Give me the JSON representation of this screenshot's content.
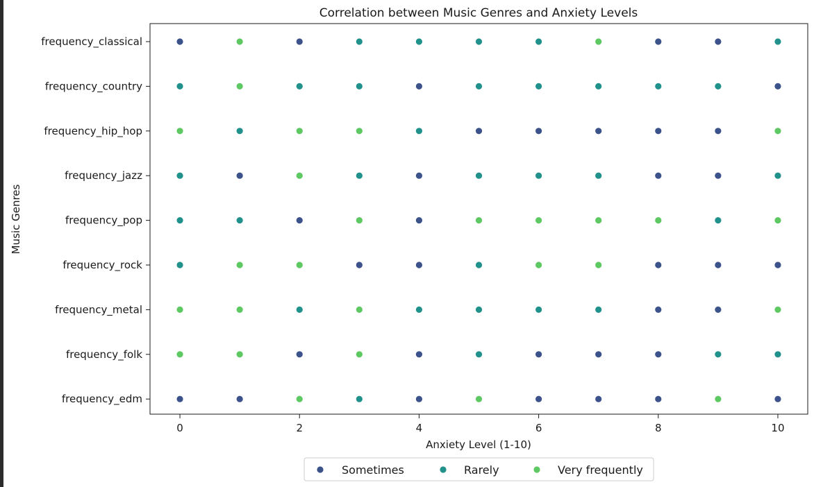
{
  "chart_data": {
    "type": "scatter",
    "title": "Correlation between Music Genres and Anxiety Levels",
    "xlabel": "Anxiety Level (1-10)",
    "ylabel": "Music Genres",
    "xlim": [
      -0.5,
      10.5
    ],
    "xticks": [
      0,
      2,
      4,
      6,
      8,
      10
    ],
    "categories": [
      "frequency_classical",
      "frequency_country",
      "frequency_hip_hop",
      "frequency_jazz",
      "frequency_pop",
      "frequency_rock",
      "frequency_metal",
      "frequency_folk",
      "frequency_edm"
    ],
    "x": [
      0,
      1,
      2,
      3,
      4,
      5,
      6,
      7,
      8,
      9,
      10
    ],
    "legend": {
      "placement": "bottom-center",
      "entries": [
        {
          "name": "Sometimes",
          "color": "#3b528b"
        },
        {
          "name": "Rarely",
          "color": "#21918c"
        },
        {
          "name": "Very frequently",
          "color": "#5ec962"
        }
      ]
    },
    "grid": false,
    "series": [
      {
        "name": "frequency_classical",
        "values": [
          "Sometimes",
          "Very frequently",
          "Sometimes",
          "Rarely",
          "Rarely",
          "Rarely",
          "Rarely",
          "Very frequently",
          "Sometimes",
          "Sometimes",
          "Rarely"
        ]
      },
      {
        "name": "frequency_country",
        "values": [
          "Rarely",
          "Very frequently",
          "Rarely",
          "Rarely",
          "Sometimes",
          "Rarely",
          "Rarely",
          "Rarely",
          "Rarely",
          "Rarely",
          "Sometimes"
        ]
      },
      {
        "name": "frequency_hip_hop",
        "values": [
          "Very frequently",
          "Rarely",
          "Very frequently",
          "Very frequently",
          "Rarely",
          "Sometimes",
          "Sometimes",
          "Sometimes",
          "Sometimes",
          "Sometimes",
          "Very frequently"
        ]
      },
      {
        "name": "frequency_jazz",
        "values": [
          "Rarely",
          "Sometimes",
          "Very frequently",
          "Rarely",
          "Sometimes",
          "Rarely",
          "Rarely",
          "Rarely",
          "Sometimes",
          "Sometimes",
          "Rarely"
        ]
      },
      {
        "name": "frequency_pop",
        "values": [
          "Rarely",
          "Rarely",
          "Sometimes",
          "Very frequently",
          "Sometimes",
          "Very frequently",
          "Very frequently",
          "Very frequently",
          "Very frequently",
          "Rarely",
          "Very frequently"
        ]
      },
      {
        "name": "frequency_rock",
        "values": [
          "Rarely",
          "Very frequently",
          "Very frequently",
          "Sometimes",
          "Sometimes",
          "Rarely",
          "Very frequently",
          "Very frequently",
          "Sometimes",
          "Sometimes",
          "Sometimes"
        ]
      },
      {
        "name": "frequency_metal",
        "values": [
          "Very frequently",
          "Very frequently",
          "Rarely",
          "Very frequently",
          "Rarely",
          "Rarely",
          "Rarely",
          "Rarely",
          "Sometimes",
          "Sometimes",
          "Very frequently"
        ]
      },
      {
        "name": "frequency_folk",
        "values": [
          "Very frequently",
          "Very frequently",
          "Sometimes",
          "Very frequently",
          "Sometimes",
          "Rarely",
          "Sometimes",
          "Sometimes",
          "Sometimes",
          "Rarely",
          "Rarely"
        ]
      },
      {
        "name": "frequency_edm",
        "values": [
          "Sometimes",
          "Sometimes",
          "Very frequently",
          "Rarely",
          "Sometimes",
          "Very frequently",
          "Sometimes",
          "Sometimes",
          "Sometimes",
          "Very frequently",
          "Sometimes"
        ]
      }
    ]
  }
}
